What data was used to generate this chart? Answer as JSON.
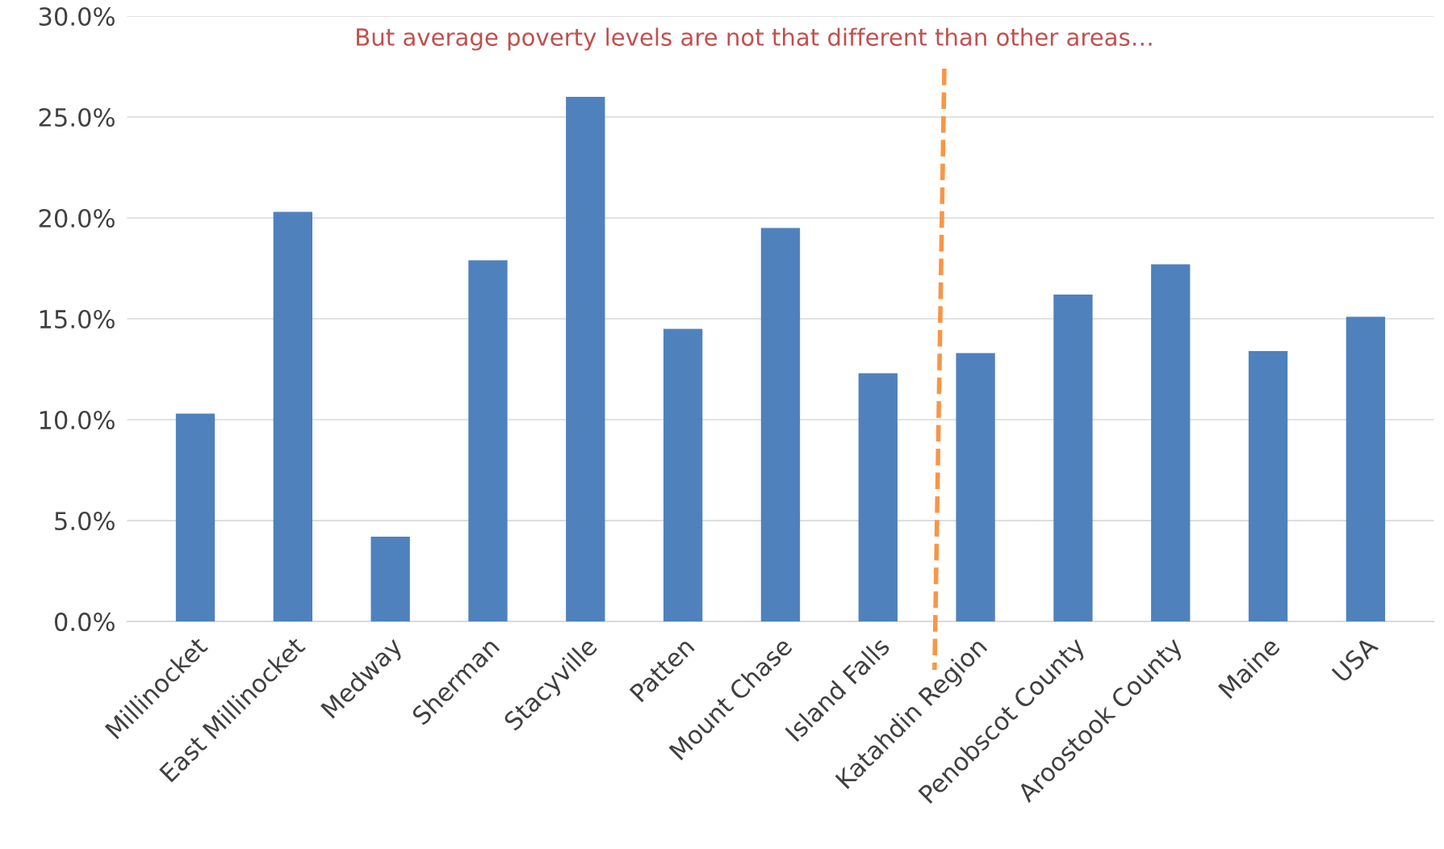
{
  "chart_data": {
    "type": "bar",
    "categories": [
      "Millinocket",
      "East Millinocket",
      "Medway",
      "Sherman",
      "Stacyville",
      "Patten",
      "Mount Chase",
      "Island Falls",
      "Katahdin Region",
      "Penobscot County",
      "Aroostook County",
      "Maine",
      "USA"
    ],
    "values": [
      10.3,
      20.3,
      4.2,
      17.9,
      26.0,
      14.5,
      19.5,
      12.3,
      13.3,
      16.2,
      17.7,
      13.4,
      15.1
    ],
    "color": "#4f81bd",
    "ylim": [
      0,
      30
    ],
    "yticks": [
      {
        "value": 0,
        "label": "0.0%"
      },
      {
        "value": 5,
        "label": "5.0%"
      },
      {
        "value": 10,
        "label": "10.0%"
      },
      {
        "value": 15,
        "label": "15.0%"
      },
      {
        "value": 20,
        "label": "20.0%"
      },
      {
        "value": 25,
        "label": "25.0%"
      },
      {
        "value": 30,
        "label": "30.0%"
      }
    ],
    "grid": "y",
    "annotations": [
      "But average poverty levels are not that different than other areas…"
    ]
  }
}
